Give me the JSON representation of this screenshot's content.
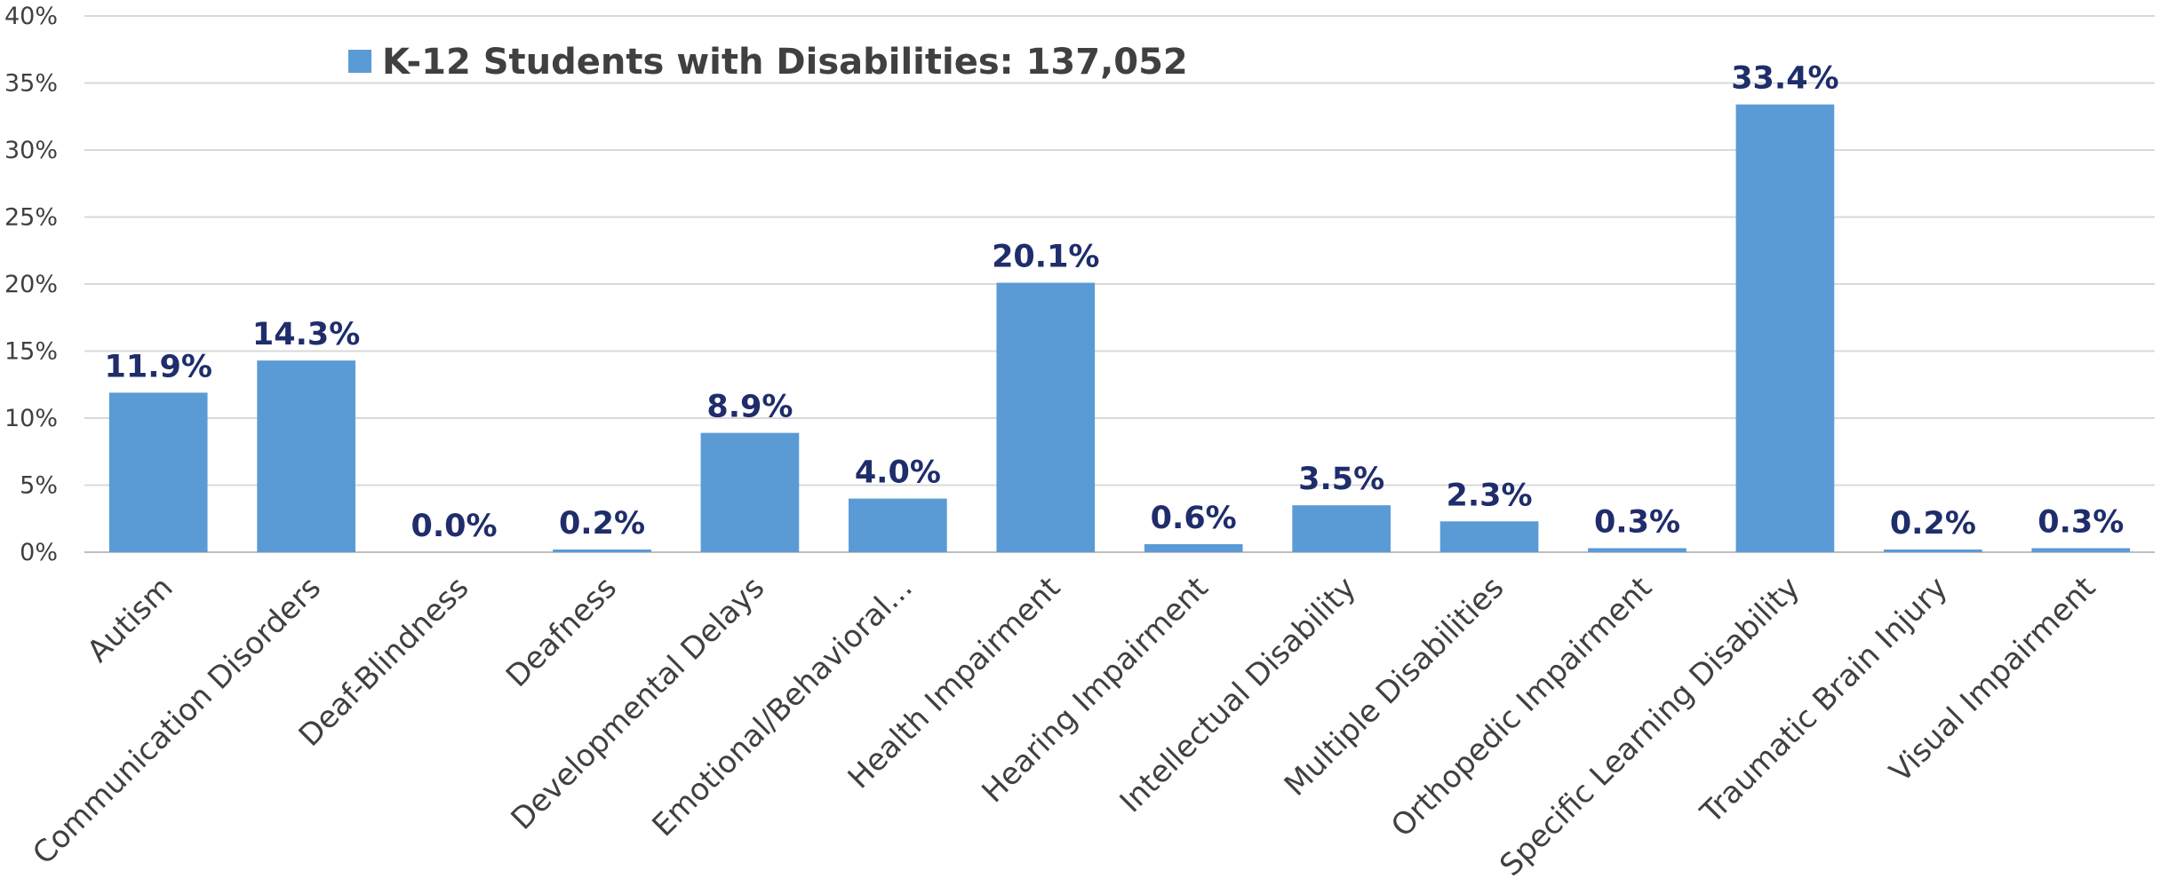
{
  "chart_data": {
    "type": "bar",
    "title": "",
    "xlabel": "",
    "ylabel": "",
    "ylim": [
      0,
      40
    ],
    "ytick_step": 5,
    "y_format": "percent",
    "grid": true,
    "legend": {
      "position": "top-left",
      "label": "K-12 Students with Disabilities: 137,052"
    },
    "categories": [
      "Autism",
      "Communication Disorders",
      "Deaf-Blindness",
      "Deafness",
      "Developmental Delays",
      "Emotional/Behavioral...",
      "Health Impairment",
      "Hearing Impairment",
      "Intellectual Disability",
      "Multiple Disabilities",
      "Orthopedic Impairment",
      "Specific Learning Disability",
      "Traumatic Brain Injury",
      "Visual Impairment"
    ],
    "series": [
      {
        "name": "K-12 Students with Disabilities: 137,052",
        "values": [
          11.9,
          14.3,
          0.0,
          0.2,
          8.9,
          4.0,
          20.1,
          0.6,
          3.5,
          2.3,
          0.3,
          33.4,
          0.2,
          0.3
        ],
        "data_labels": [
          "11.9%",
          "14.3%",
          "0.0%",
          "0.2%",
          "8.9%",
          "4.0%",
          "20.1%",
          "0.6%",
          "3.5%",
          "2.3%",
          "0.3%",
          "33.4%",
          "0.2%",
          "0.3%"
        ]
      }
    ],
    "colors": {
      "bar": "#5b9bd5",
      "data_label": "#1f2d6b",
      "grid": "#d9d9d9",
      "axis": "#bfbfbf"
    }
  }
}
